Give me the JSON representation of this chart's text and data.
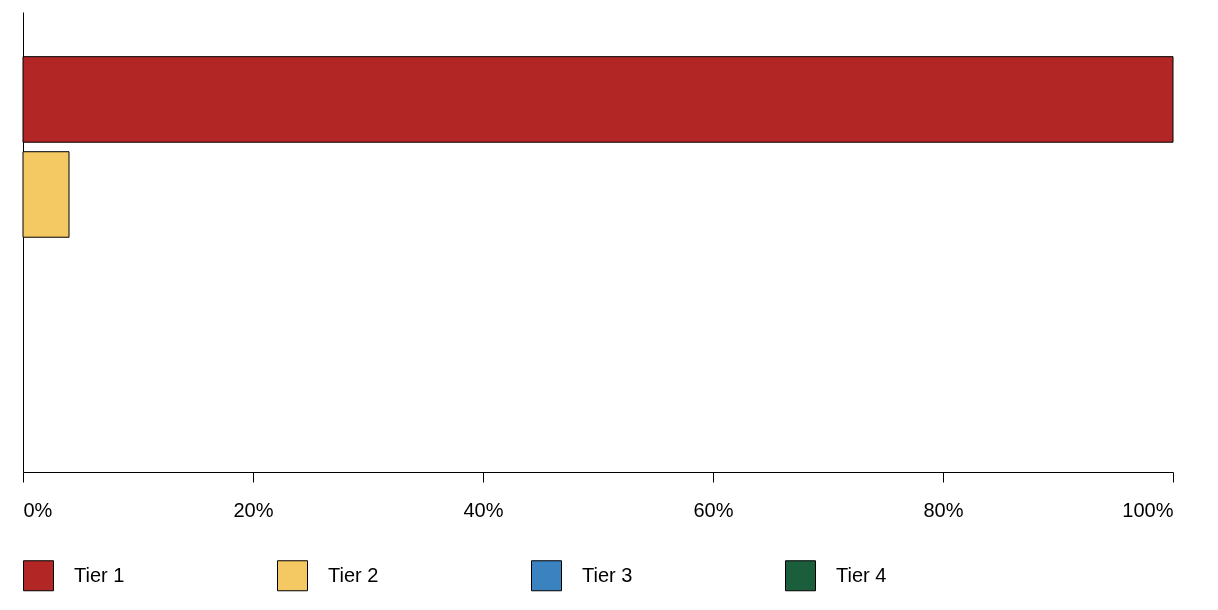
{
  "chart_data": {
    "type": "bar",
    "orientation": "horizontal",
    "categories": [
      null,
      null,
      null,
      null
    ],
    "series": [
      {
        "name": "Tier 1",
        "color": "#b22725",
        "values": [
          100,
          null,
          null,
          null
        ]
      },
      {
        "name": "Tier 2",
        "color": "#f4c862",
        "values": [
          null,
          4,
          null,
          null
        ]
      },
      {
        "name": "Tier 3",
        "color": "#3a82c0",
        "values": [
          null,
          null,
          0,
          null
        ]
      },
      {
        "name": "Tier 4",
        "color": "#1b5e3b",
        "values": [
          null,
          null,
          null,
          0
        ]
      }
    ],
    "xlim": [
      0,
      100
    ],
    "xticks": [
      {
        "value": 0,
        "label": "0%"
      },
      {
        "value": 20,
        "label": "20%"
      },
      {
        "value": 40,
        "label": "40%"
      },
      {
        "value": 60,
        "label": "60%"
      },
      {
        "value": 80,
        "label": "80%"
      },
      {
        "value": 100,
        "label": "100%"
      }
    ],
    "grid": false,
    "legend": "bottom",
    "tick_labels": "x"
  }
}
